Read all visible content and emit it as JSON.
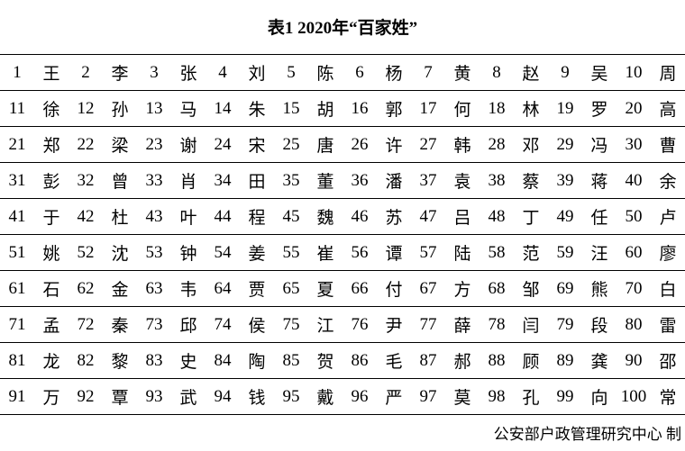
{
  "title": "表1  2020年“百家姓”",
  "surnames": [
    "王",
    "李",
    "张",
    "刘",
    "陈",
    "杨",
    "黄",
    "赵",
    "吴",
    "周",
    "徐",
    "孙",
    "马",
    "朱",
    "胡",
    "郭",
    "何",
    "林",
    "罗",
    "高",
    "郑",
    "梁",
    "谢",
    "宋",
    "唐",
    "许",
    "韩",
    "邓",
    "冯",
    "曹",
    "彭",
    "曾",
    "肖",
    "田",
    "董",
    "潘",
    "袁",
    "蔡",
    "蒋",
    "余",
    "于",
    "杜",
    "叶",
    "程",
    "魏",
    "苏",
    "吕",
    "丁",
    "任",
    "卢",
    "姚",
    "沈",
    "钟",
    "姜",
    "崔",
    "谭",
    "陆",
    "范",
    "汪",
    "廖",
    "石",
    "金",
    "韦",
    "贾",
    "夏",
    "付",
    "方",
    "邹",
    "熊",
    "白",
    "孟",
    "秦",
    "邱",
    "侯",
    "江",
    "尹",
    "薛",
    "闫",
    "段",
    "雷",
    "龙",
    "黎",
    "史",
    "陶",
    "贺",
    "毛",
    "郝",
    "顾",
    "龚",
    "邵",
    "万",
    "覃",
    "武",
    "钱",
    "戴",
    "严",
    "莫",
    "孔",
    "向",
    "常"
  ],
  "ranks": [
    "1",
    "2",
    "3",
    "4",
    "5",
    "6",
    "7",
    "8",
    "9",
    "10",
    "11",
    "12",
    "13",
    "14",
    "15",
    "16",
    "17",
    "18",
    "19",
    "20",
    "21",
    "22",
    "23",
    "24",
    "25",
    "26",
    "27",
    "28",
    "29",
    "30",
    "31",
    "32",
    "33",
    "34",
    "35",
    "36",
    "37",
    "38",
    "39",
    "40",
    "41",
    "42",
    "43",
    "44",
    "45",
    "46",
    "47",
    "48",
    "49",
    "50",
    "51",
    "52",
    "53",
    "54",
    "55",
    "56",
    "57",
    "58",
    "59",
    "60",
    "61",
    "62",
    "63",
    "64",
    "65",
    "66",
    "67",
    "68",
    "69",
    "70",
    "71",
    "72",
    "73",
    "74",
    "75",
    "76",
    "77",
    "78",
    "79",
    "80",
    "81",
    "82",
    "83",
    "84",
    "85",
    "86",
    "87",
    "88",
    "89",
    "90",
    "91",
    "92",
    "93",
    "94",
    "95",
    "96",
    "97",
    "98",
    "99",
    "100"
  ],
  "footer": "公安部户政管理研究中心 制"
}
